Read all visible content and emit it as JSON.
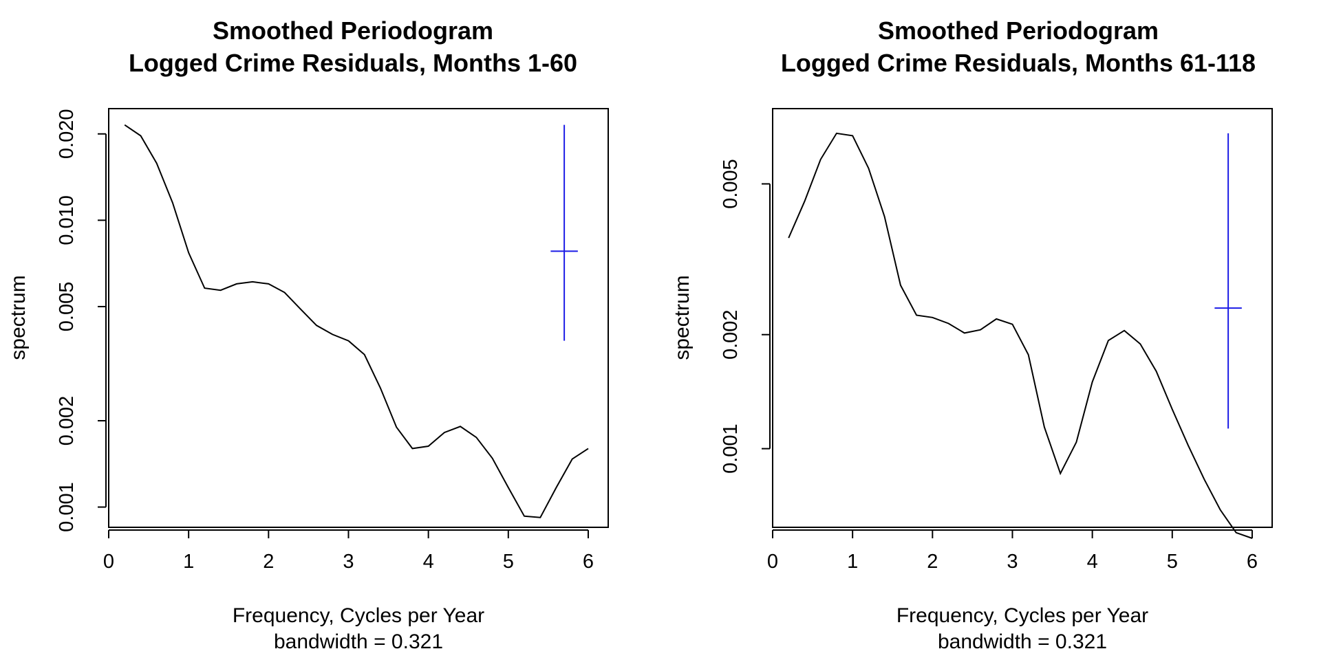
{
  "chart_data": [
    {
      "type": "line",
      "title": [
        "Smoothed Periodogram",
        "Logged Crime Residuals, Months 1-60"
      ],
      "xlabel": "Frequency, Cycles per Year",
      "sublabel": "bandwidth = 0.321",
      "ylabel": "spectrum",
      "yscale": "log",
      "xlim": [
        0,
        6.25
      ],
      "ylim": [
        0.00085,
        0.0245
      ],
      "xticks": [
        0,
        1,
        2,
        3,
        4,
        5,
        6
      ],
      "xtick_labels": [
        "0",
        "1",
        "2",
        "3",
        "4",
        "5",
        "6"
      ],
      "yticks": [
        0.001,
        0.002,
        0.005,
        0.01,
        0.02
      ],
      "ytick_labels": [
        "0.001",
        "0.002",
        "0.005",
        "0.010",
        "0.020"
      ],
      "x": [
        0.2,
        0.4,
        0.6,
        0.8,
        1.0,
        1.2,
        1.4,
        1.6,
        1.8,
        2.0,
        2.2,
        2.4,
        2.6,
        2.8,
        3.0,
        3.2,
        3.4,
        3.6,
        3.8,
        4.0,
        4.2,
        4.4,
        4.6,
        4.8,
        5.0,
        5.2,
        5.4,
        5.6,
        5.8,
        6.0
      ],
      "y": [
        0.0215,
        0.0197,
        0.0158,
        0.0115,
        0.0077,
        0.0058,
        0.0057,
        0.006,
        0.0061,
        0.006,
        0.0056,
        0.0049,
        0.0043,
        0.004,
        0.0038,
        0.0034,
        0.0026,
        0.0019,
        0.0016,
        0.00163,
        0.00182,
        0.00191,
        0.00175,
        0.00148,
        0.00117,
        0.00093,
        0.00092,
        0.00117,
        0.00147,
        0.0016
      ],
      "ci_bar": {
        "x": 5.7,
        "center": 0.0078,
        "lower": 0.0038,
        "upper": 0.0215,
        "half_width": 0.17,
        "color": "#1a1ae6"
      },
      "grid": false,
      "legend": "none"
    },
    {
      "type": "line",
      "title": [
        "Smoothed Periodogram",
        "Logged Crime Residuals, Months 61-118"
      ],
      "xlabel": "Frequency, Cycles per Year",
      "sublabel": "bandwidth = 0.321",
      "ylabel": "spectrum",
      "yscale": "log",
      "xlim": [
        0,
        6.25
      ],
      "ylim": [
        0.00062,
        0.0079
      ],
      "xticks": [
        0,
        1,
        2,
        3,
        4,
        5,
        6
      ],
      "xtick_labels": [
        "0",
        "1",
        "2",
        "3",
        "4",
        "5",
        "6"
      ],
      "yticks": [
        0.001,
        0.002,
        0.005
      ],
      "ytick_labels": [
        "0.001",
        "0.002",
        "0.005"
      ],
      "x": [
        0.2,
        0.4,
        0.6,
        0.8,
        1.0,
        1.2,
        1.4,
        1.6,
        1.8,
        2.0,
        2.2,
        2.4,
        2.6,
        2.8,
        3.0,
        3.2,
        3.4,
        3.6,
        3.8,
        4.0,
        4.2,
        4.4,
        4.6,
        4.8,
        5.0,
        5.2,
        5.4,
        5.6,
        5.8,
        6.0
      ],
      "y": [
        0.0036,
        0.0045,
        0.0058,
        0.0068,
        0.0067,
        0.0055,
        0.0041,
        0.0027,
        0.00225,
        0.00222,
        0.00214,
        0.00202,
        0.00206,
        0.0022,
        0.00213,
        0.00177,
        0.00114,
        0.00086,
        0.00104,
        0.0015,
        0.00193,
        0.00205,
        0.00189,
        0.0016,
        0.00127,
        0.00102,
        0.00083,
        0.00069,
        0.0006,
        0.00058
      ],
      "ci_bar": {
        "x": 5.7,
        "center": 0.00235,
        "lower": 0.00113,
        "upper": 0.0068,
        "half_width": 0.17,
        "color": "#1a1ae6"
      },
      "grid": false,
      "legend": "none"
    }
  ]
}
